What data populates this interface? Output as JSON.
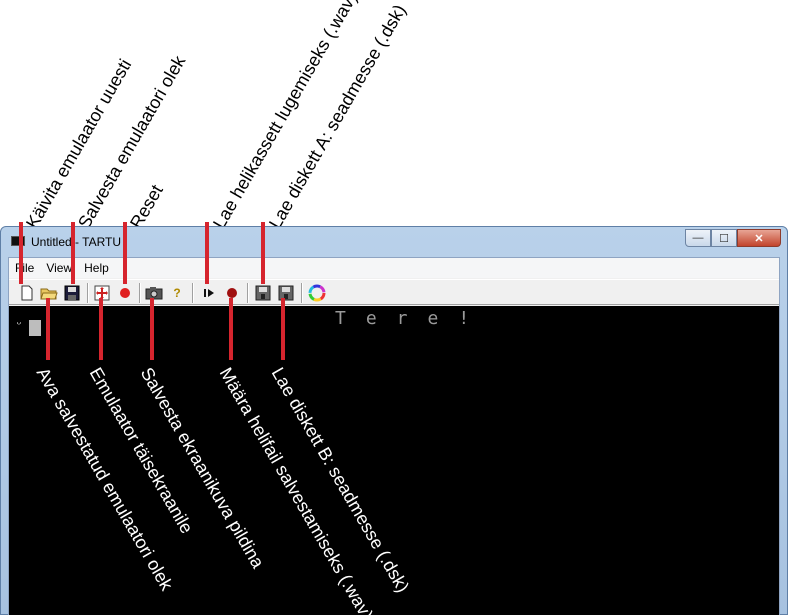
{
  "window": {
    "title": "Untitled - TARTU",
    "min_glyph": "—",
    "max_glyph": "☐",
    "close_glyph": "✕"
  },
  "menu": [
    "File",
    "View",
    "Help"
  ],
  "toolbar": [
    {
      "name": "new-file-icon",
      "glyph": "🗋"
    },
    {
      "name": "open-folder-icon",
      "glyph": "📂"
    },
    {
      "name": "save-disk-icon",
      "glyph": "💾"
    },
    {
      "name": "fullscreen-icon",
      "glyph": "✥"
    },
    {
      "name": "reset-icon",
      "glyph": "●"
    },
    {
      "name": "camera-icon",
      "glyph": "📷"
    },
    {
      "name": "help-icon",
      "glyph": "?"
    },
    {
      "name": "play-tape-icon",
      "glyph": "▶"
    },
    {
      "name": "record-tape-icon",
      "glyph": "●"
    },
    {
      "name": "disk-a-icon",
      "glyph": "▤"
    },
    {
      "name": "disk-b-icon",
      "glyph": "▤"
    },
    {
      "name": "color-wheel-icon",
      "glyph": "◎"
    }
  ],
  "screen": {
    "text": "Tere!",
    "prompt": "ᵕ"
  },
  "annotations_top": [
    "Käivita emulaator uuesti",
    "Salvesta emulaatori olek",
    "Reset",
    "Lae helikassett lugemiseks (.wav)",
    "Lae diskett A: seadmesse (.dsk)"
  ],
  "annotations_bottom": [
    "Ava salvestatud emulaatori olek",
    "Emulaator täisekraanile",
    "Salvesta ekraanikuva pildina",
    "Määra helifail salvestamiseks (.wav)",
    "Lae diskett B: seadmesse (.dsk)"
  ],
  "colors": {
    "pointer": "#d6252e",
    "reset_dot": "#e02020",
    "record_dot": "#a01010"
  }
}
